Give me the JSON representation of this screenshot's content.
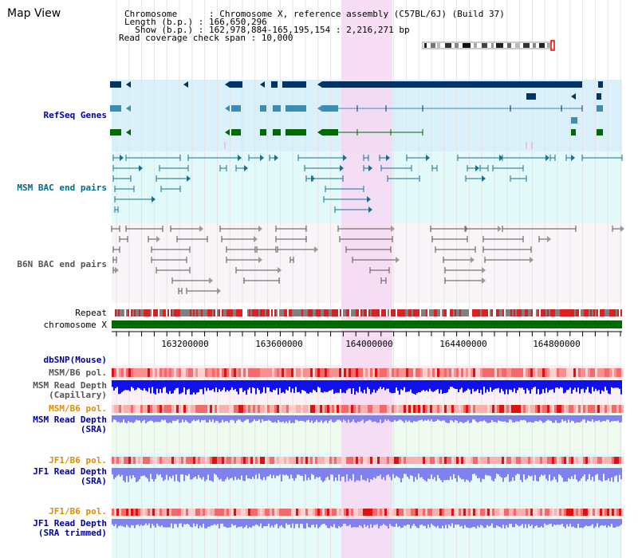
{
  "title": "Map View",
  "header_info": {
    "line1": "Chromosome      : Chromosome X, reference assembly (C57BL/6J) (Build 37)",
    "line2": "Length (b.p.) : 166,650,296",
    "line3": "  Show (b.p.) : 162,978,884-165,195,154 : 2,216,271 bp",
    "line4": "Read coverage check span : 10,000"
  },
  "tracks": {
    "refseq": "RefSeq Genes",
    "msm_bac": "MSM BAC end pairs",
    "b6n_bac": "B6N BAC end pairs",
    "repeat": "Repeat",
    "chromosome": "chromosome X",
    "dbsnp": "dbSNP(Mouse)",
    "msm_b6_pol_1": "MSM/B6 pol.",
    "msm_depth_cap_1": "MSM Read Depth",
    "msm_depth_cap_2": "(Capillary)",
    "msm_b6_pol_2": "MSM/B6 pol.",
    "msm_depth_sra_1": "MSM Read Depth",
    "msm_depth_sra_2": "(SRA)",
    "jf1_b6_pol_1": "JF1/B6 pol.",
    "jf1_depth_sra_1": "JF1 Read Depth",
    "jf1_depth_sra_2": "(SRA)",
    "jf1_b6_pol_2": "JF1/B6 pol.",
    "jf1_depth_trim_1": "JF1 Read Depth",
    "jf1_depth_trim_2": "(SRA trimmed)"
  },
  "axis": {
    "ticks": [
      "163200000",
      "163600000",
      "164000000",
      "164400000",
      "164800000"
    ]
  },
  "colors": {
    "highlight": "#f6d8f3",
    "refseq_bg": "#daf0fa",
    "msm_bg": "#e3fafa",
    "b6n_bg": "#f8f4f8",
    "gene_dark": "#003466",
    "gene_mid": "#3c8cb4",
    "gene_green": "#006a00",
    "bac_msm": "#1a6e8e",
    "bac_b6n": "#555555",
    "pol_red": "#f03030",
    "depth_blue": "#1010ee",
    "depth_light": "#8080f0",
    "label_blue": "#0000a0",
    "label_orange": "#e08c00",
    "label_teal": "#006a8a"
  }
}
